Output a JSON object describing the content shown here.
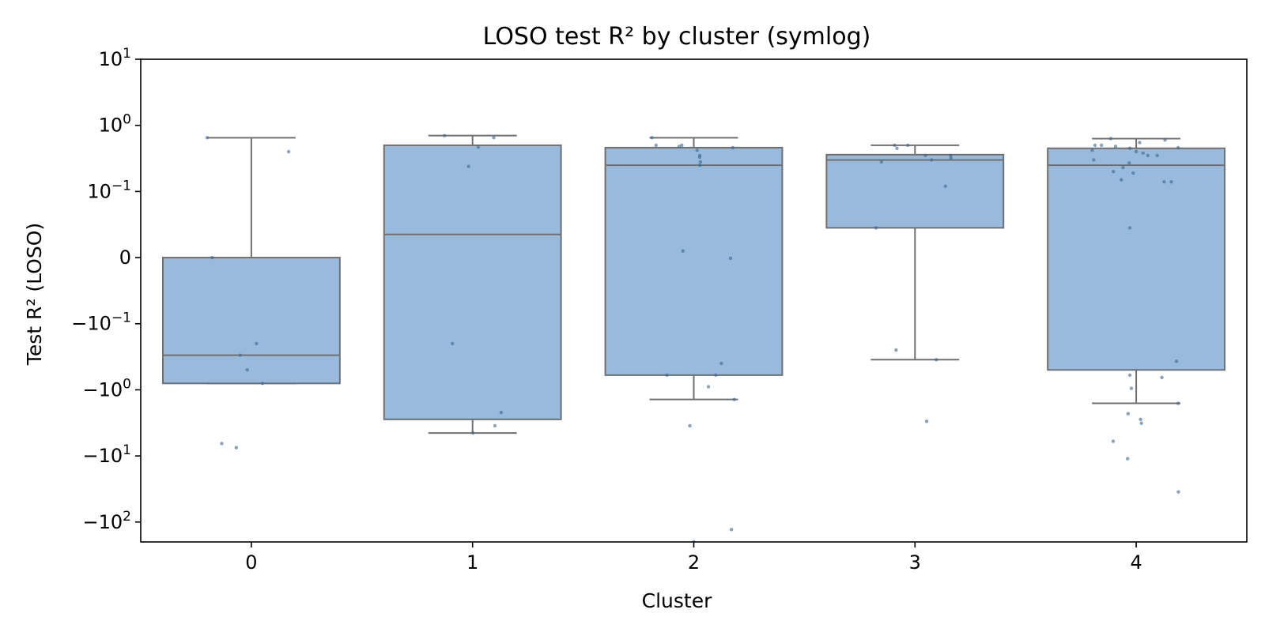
{
  "chart_data": {
    "type": "box",
    "title": "LOSO test R² by cluster (symlog)",
    "xlabel": "Cluster",
    "ylabel": "Test R² (LOSO)",
    "yscale": "symlog",
    "linthresh": 0.1,
    "ylim": [
      -200,
      10
    ],
    "categories": [
      "0",
      "1",
      "2",
      "3",
      "4"
    ],
    "yticks": [
      {
        "value": 10,
        "base": "10",
        "exp": "1"
      },
      {
        "value": 1,
        "base": "10",
        "exp": "0"
      },
      {
        "value": 0.1,
        "base": "10",
        "exp": "−1"
      },
      {
        "value": 0,
        "base": "0",
        "exp": ""
      },
      {
        "value": -0.1,
        "base": "−10",
        "exp": "−1"
      },
      {
        "value": -1,
        "base": "−10",
        "exp": "0"
      },
      {
        "value": -10,
        "base": "−10",
        "exp": "1"
      },
      {
        "value": -100,
        "base": "−10",
        "exp": "2"
      }
    ],
    "boxes": [
      {
        "category": "0",
        "whisker_low": -0.8,
        "q1": -0.8,
        "median": -0.3,
        "q3": 0.0,
        "whisker_high": 0.65
      },
      {
        "category": "1",
        "whisker_low": -4.5,
        "q1": -2.8,
        "median": 0.035,
        "q3": 0.5,
        "whisker_high": 0.7
      },
      {
        "category": "2",
        "whisker_low": -1.4,
        "q1": -0.6,
        "median": 0.25,
        "q3": 0.46,
        "whisker_high": 0.65
      },
      {
        "category": "3",
        "whisker_low": -0.35,
        "q1": 0.045,
        "median": 0.3,
        "q3": 0.36,
        "whisker_high": 0.5
      },
      {
        "category": "4",
        "whisker_low": -1.6,
        "q1": -0.5,
        "median": 0.25,
        "q3": 0.45,
        "whisker_high": 0.63
      }
    ],
    "points": [
      {
        "category": "0",
        "values": [
          0.65,
          0.4,
          0.0,
          -0.2,
          -0.3,
          -0.5,
          -0.8,
          -6.5,
          -7.5
        ]
      },
      {
        "category": "1",
        "values": [
          0.7,
          0.65,
          0.47,
          0.24,
          -0.2,
          -2.2,
          -3.5,
          -4.5
        ]
      },
      {
        "category": "2",
        "values": [
          0.65,
          0.5,
          0.5,
          0.48,
          0.46,
          0.42,
          0.35,
          0.33,
          0.28,
          0.25,
          0.01,
          -0.001,
          -0.4,
          -0.6,
          -0.6,
          -0.9,
          -1.4,
          -3.5,
          -130,
          -200
        ]
      },
      {
        "category": "3",
        "values": [
          0.5,
          0.5,
          0.45,
          0.35,
          0.35,
          0.32,
          0.3,
          0.28,
          0.12,
          0.045,
          -0.25,
          -0.35,
          -3.0
        ]
      },
      {
        "category": "4",
        "values": [
          0.63,
          0.6,
          0.55,
          0.5,
          0.5,
          0.48,
          0.46,
          0.45,
          0.42,
          0.4,
          0.38,
          0.35,
          0.35,
          0.3,
          0.27,
          0.23,
          0.2,
          0.19,
          0.15,
          0.14,
          0.14,
          0.045,
          -0.37,
          -0.6,
          -0.65,
          -0.95,
          -1.6,
          -2.3,
          -2.8,
          -3.2,
          -6.0,
          -11,
          -35
        ]
      }
    ],
    "colors": {
      "box_fill": "#98bbdd",
      "box_edge": "#707070",
      "point": "#3a6690"
    },
    "grid": false,
    "legend": false
  }
}
